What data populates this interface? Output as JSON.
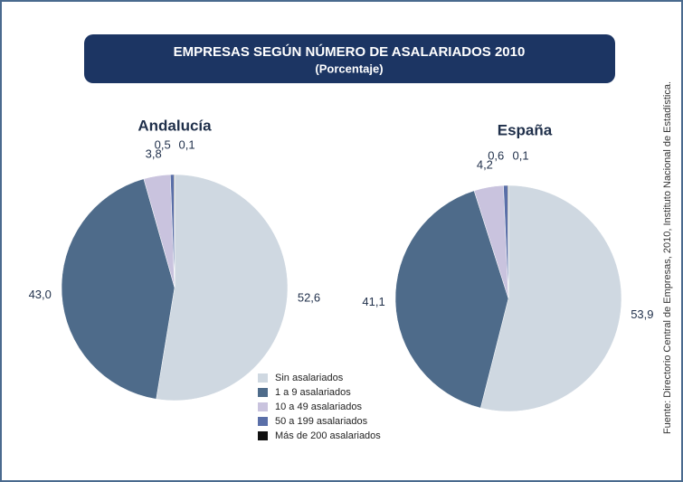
{
  "title": "EMPRESAS SEGÚN NÚMERO DE ASALARIADOS 2010",
  "subtitle": "(Porcentaje)",
  "source": "Fuente: Directorio Central de Empresas, 2010, Instituto Nacional de Estadística.",
  "chart_data": [
    {
      "type": "pie",
      "title": "Andalucía",
      "categories": [
        "Sin asalariados",
        "1 a 9 asalariados",
        "10 a 49 asalariados",
        "50 a 199 asalariados",
        "Más de 200 asalariados"
      ],
      "values": [
        52.6,
        43.0,
        3.8,
        0.5,
        0.1
      ],
      "value_labels": [
        "52,6",
        "43,0",
        "3,8",
        "0,5",
        "0,1"
      ],
      "colors": [
        "#cfd8e1",
        "#4e6b8a",
        "#c9c3de",
        "#5a6fa8",
        "#111111"
      ]
    },
    {
      "type": "pie",
      "title": "España",
      "categories": [
        "Sin asalariados",
        "1 a 9 asalariados",
        "10 a 49 asalariados",
        "50 a 199 asalariados",
        "Más de 200 asalariados"
      ],
      "values": [
        53.9,
        41.1,
        4.2,
        0.6,
        0.1
      ],
      "value_labels": [
        "53,9",
        "41,1",
        "4,2",
        "0,6",
        "0,1"
      ],
      "colors": [
        "#cfd8e1",
        "#4e6b8a",
        "#c9c3de",
        "#5a6fa8",
        "#111111"
      ]
    }
  ]
}
